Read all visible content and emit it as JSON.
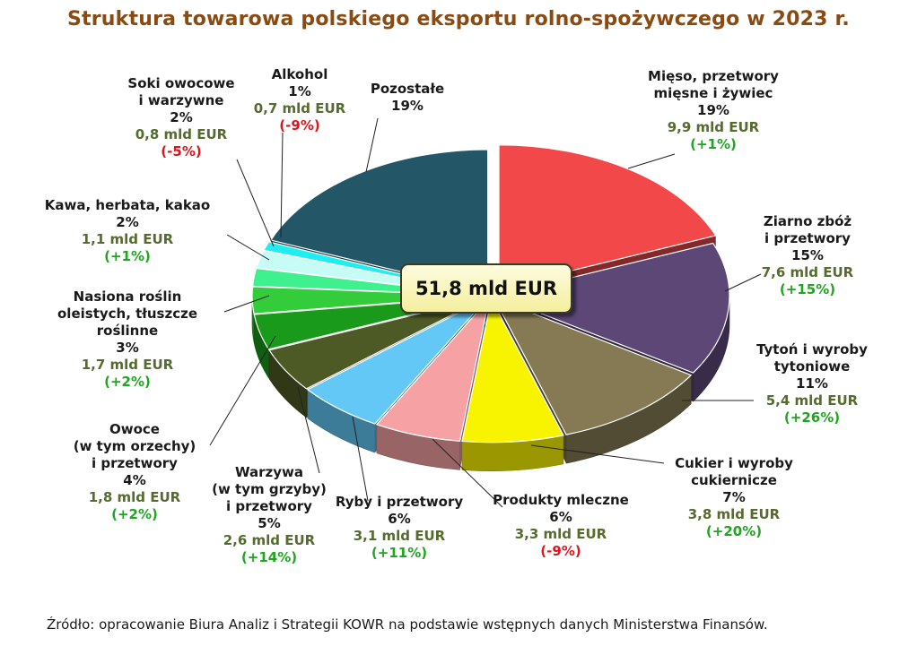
{
  "chart_data": {
    "type": "pie",
    "title": "Struktura towarowa polskiego eksportu rolno-spożywczego w 2023 r.",
    "total_label": "51,8 mld EUR",
    "unit": "mld EUR",
    "slices": [
      {
        "name_lines": [
          "Mięso, przetwory",
          "mięsne i żywiec"
        ],
        "share_pct": 19,
        "share_label": "19%",
        "value": 9.9,
        "value_label": "9,9 mld EUR",
        "change_label": "(+1%)",
        "change_pct": 1,
        "color": "#f2484a"
      },
      {
        "name_lines": [
          "Ziarno zbóż",
          "i przetwory"
        ],
        "share_pct": 15,
        "share_label": "15%",
        "value": 7.6,
        "value_label": "7,6 mld EUR",
        "change_label": "(+15%)",
        "change_pct": 15,
        "color": "#5c4777"
      },
      {
        "name_lines": [
          "Tytoń i wyroby",
          "tytoniowe"
        ],
        "share_pct": 11,
        "share_label": "11%",
        "value": 5.4,
        "value_label": "5,4 mld EUR",
        "change_label": "(+26%)",
        "change_pct": 26,
        "color": "#857a54"
      },
      {
        "name_lines": [
          "Cukier i wyroby",
          "cukiernicze"
        ],
        "share_pct": 7,
        "share_label": "7%",
        "value": 3.8,
        "value_label": "3,8 mld EUR",
        "change_label": "(+20%)",
        "change_pct": 20,
        "color": "#f8f400"
      },
      {
        "name_lines": [
          "Produkty mleczne"
        ],
        "share_pct": 6,
        "share_label": "6%",
        "value": 3.3,
        "value_label": "3,3 mld EUR",
        "change_label": "(-9%)",
        "change_pct": -9,
        "color": "#f6a2a4"
      },
      {
        "name_lines": [
          "Ryby i przetwory"
        ],
        "share_pct": 6,
        "share_label": "6%",
        "value": 3.1,
        "value_label": "3,1 mld EUR",
        "change_label": "(+11%)",
        "change_pct": 11,
        "color": "#63c8f6"
      },
      {
        "name_lines": [
          "Warzywa",
          "(w tym grzyby)",
          "i przetwory"
        ],
        "share_pct": 5,
        "share_label": "5%",
        "value": 2.6,
        "value_label": "2,6 mld EUR",
        "change_label": "(+14%)",
        "change_pct": 14,
        "color": "#4e5a26"
      },
      {
        "name_lines": [
          "Owoce",
          "(w tym orzechy)",
          "i przetwory"
        ],
        "share_pct": 4,
        "share_label": "4%",
        "value": 1.8,
        "value_label": "1,8 mld EUR",
        "change_label": "(+2%)",
        "change_pct": 2,
        "color": "#1a9a1a"
      },
      {
        "name_lines": [
          "Nasiona roślin",
          "oleistych, tłuszcze",
          "roślinne"
        ],
        "share_pct": 3,
        "share_label": "3%",
        "value": 1.7,
        "value_label": "1,7 mld EUR",
        "change_label": "(+2%)",
        "change_pct": 2,
        "color": "#33cc3a"
      },
      {
        "name_lines": [
          "Kawa, herbata, kakao"
        ],
        "share_pct": 2,
        "share_label": "2%",
        "value": 1.1,
        "value_label": "1,1 mld EUR",
        "change_label": "(+1%)",
        "change_pct": 1,
        "color": "#3ef08e"
      },
      {
        "name_lines": [
          "Soki owocowe",
          "i warzywne"
        ],
        "share_pct": 2,
        "share_label": "2%",
        "value": 0.8,
        "value_label": "0,8 mld EUR",
        "change_label": "(-5%)",
        "change_pct": -5,
        "color": "#c6fbf6"
      },
      {
        "name_lines": [
          "Alkohol"
        ],
        "share_pct": 1,
        "share_label": "1%",
        "value": 0.7,
        "value_label": "0,7 mld EUR",
        "change_label": "(-9%)",
        "change_pct": -9,
        "color": "#1eeef0"
      },
      {
        "name_lines": [
          "Pozostałe"
        ],
        "share_pct": 19,
        "share_label": "19%",
        "value": null,
        "value_label": "",
        "change_label": "",
        "change_pct": null,
        "color": "#235767"
      }
    ],
    "legend": "none"
  },
  "colors": {
    "title": "#8a4b12",
    "value_text": "#556b2f",
    "change_positive": "#1fa51f",
    "change_negative": "#e0141b"
  },
  "source_text": "Źródło: opracowanie Biura Analiz i Strategii KOWR na podstawie wstępnych danych Ministerstwa Finansów."
}
